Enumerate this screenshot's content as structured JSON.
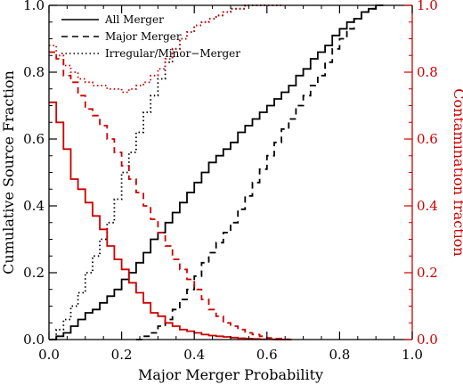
{
  "chart_data": {
    "type": "line",
    "xlabel": "Major Merger Probability",
    "ylabel": "Cumulative Source Fraction",
    "ylabel_right": "Contamination fraction",
    "xlim": [
      0.0,
      1.0
    ],
    "ylim": [
      0.0,
      1.0
    ],
    "ylim_right": [
      0.0,
      1.0
    ],
    "x_ticks": [
      "0.0",
      "0.2",
      "0.4",
      "0.6",
      "0.8",
      "1.0"
    ],
    "y_ticks": [
      "0.0",
      "0.2",
      "0.4",
      "0.6",
      "0.8",
      "1.0"
    ],
    "y_ticks_right": [
      "0.0",
      "0.2",
      "0.4",
      "0.6",
      "0.8",
      "1.0"
    ],
    "legend_position": "top-left",
    "grid": false,
    "bin_width": 0.02,
    "colors": {
      "cumulative": "#000000",
      "contamination": "#cc0000"
    },
    "series": [
      {
        "name": "All Merger",
        "axis": "left",
        "style": "solid",
        "color": "#000000",
        "x": [
          0.0,
          0.02,
          0.04,
          0.06,
          0.08,
          0.1,
          0.12,
          0.14,
          0.16,
          0.18,
          0.2,
          0.22,
          0.24,
          0.26,
          0.28,
          0.3,
          0.32,
          0.34,
          0.36,
          0.38,
          0.4,
          0.42,
          0.44,
          0.46,
          0.48,
          0.5,
          0.52,
          0.54,
          0.56,
          0.58,
          0.6,
          0.62,
          0.64,
          0.66,
          0.68,
          0.7,
          0.72,
          0.74,
          0.76,
          0.78,
          0.8,
          0.82,
          0.84,
          0.86,
          0.88,
          0.9
        ],
        "y": [
          0.0,
          0.01,
          0.02,
          0.04,
          0.06,
          0.08,
          0.09,
          0.11,
          0.13,
          0.15,
          0.18,
          0.2,
          0.23,
          0.26,
          0.3,
          0.32,
          0.35,
          0.38,
          0.41,
          0.44,
          0.47,
          0.5,
          0.53,
          0.55,
          0.57,
          0.59,
          0.62,
          0.64,
          0.66,
          0.68,
          0.7,
          0.72,
          0.74,
          0.76,
          0.79,
          0.81,
          0.84,
          0.86,
          0.88,
          0.91,
          0.93,
          0.95,
          0.96,
          0.98,
          0.99,
          1.0
        ]
      },
      {
        "name": "Major Merger",
        "axis": "left",
        "style": "dashed",
        "color": "#000000",
        "x": [
          0.24,
          0.26,
          0.28,
          0.3,
          0.32,
          0.34,
          0.36,
          0.38,
          0.4,
          0.42,
          0.44,
          0.46,
          0.48,
          0.5,
          0.52,
          0.54,
          0.56,
          0.58,
          0.6,
          0.62,
          0.64,
          0.66,
          0.68,
          0.7,
          0.72,
          0.74,
          0.76,
          0.78,
          0.8,
          0.82,
          0.84,
          0.86,
          0.88,
          0.9
        ],
        "y": [
          0.0,
          0.01,
          0.02,
          0.04,
          0.06,
          0.09,
          0.12,
          0.15,
          0.19,
          0.23,
          0.26,
          0.29,
          0.32,
          0.35,
          0.39,
          0.43,
          0.47,
          0.51,
          0.55,
          0.59,
          0.63,
          0.66,
          0.7,
          0.73,
          0.76,
          0.79,
          0.83,
          0.87,
          0.9,
          0.93,
          0.96,
          0.98,
          0.99,
          1.0
        ]
      },
      {
        "name": "Irregular/Minor−Merger",
        "axis": "left",
        "style": "dotted",
        "color": "#000000",
        "x": [
          0.0,
          0.02,
          0.04,
          0.06,
          0.08,
          0.1,
          0.12,
          0.14,
          0.16,
          0.18,
          0.2,
          0.22,
          0.24,
          0.26,
          0.28,
          0.3,
          0.32,
          0.34,
          0.36,
          0.38,
          0.4,
          0.42,
          0.44,
          0.46,
          0.48,
          0.5,
          0.52,
          0.54,
          0.56,
          0.58
        ],
        "y": [
          0.0,
          0.03,
          0.06,
          0.1,
          0.14,
          0.2,
          0.25,
          0.3,
          0.35,
          0.42,
          0.5,
          0.56,
          0.62,
          0.68,
          0.73,
          0.78,
          0.83,
          0.87,
          0.9,
          0.92,
          0.94,
          0.95,
          0.96,
          0.97,
          0.98,
          0.99,
          0.99,
          1.0,
          1.0,
          1.0
        ]
      },
      {
        "name": "All Merger",
        "axis": "right",
        "style": "solid",
        "color": "#cc0000",
        "x": [
          0.0,
          0.02,
          0.04,
          0.06,
          0.08,
          0.1,
          0.12,
          0.14,
          0.16,
          0.18,
          0.2,
          0.22,
          0.24,
          0.26,
          0.28,
          0.3,
          0.32,
          0.34,
          0.36,
          0.38,
          0.4,
          0.42,
          0.44,
          0.46,
          0.48,
          0.5,
          0.52,
          0.54,
          0.56,
          0.58,
          0.6,
          0.62,
          0.64
        ],
        "y": [
          0.71,
          0.65,
          0.57,
          0.48,
          0.45,
          0.41,
          0.37,
          0.33,
          0.28,
          0.24,
          0.21,
          0.17,
          0.14,
          0.11,
          0.08,
          0.07,
          0.05,
          0.04,
          0.03,
          0.025,
          0.02,
          0.015,
          0.012,
          0.01,
          0.008,
          0.006,
          0.004,
          0.003,
          0.002,
          0.001,
          0.001,
          0.0,
          0.0
        ]
      },
      {
        "name": "Major Merger",
        "axis": "right",
        "style": "dashed",
        "color": "#cc0000",
        "x": [
          0.0,
          0.02,
          0.04,
          0.06,
          0.08,
          0.1,
          0.12,
          0.14,
          0.16,
          0.18,
          0.2,
          0.22,
          0.24,
          0.26,
          0.28,
          0.3,
          0.32,
          0.34,
          0.36,
          0.38,
          0.4,
          0.42,
          0.44,
          0.46,
          0.48,
          0.5,
          0.52,
          0.54,
          0.56,
          0.58,
          0.6,
          0.62,
          0.64,
          0.66
        ],
        "y": [
          0.86,
          0.84,
          0.79,
          0.77,
          0.73,
          0.69,
          0.67,
          0.64,
          0.6,
          0.56,
          0.52,
          0.48,
          0.44,
          0.4,
          0.36,
          0.32,
          0.28,
          0.24,
          0.21,
          0.18,
          0.15,
          0.12,
          0.09,
          0.07,
          0.05,
          0.04,
          0.03,
          0.02,
          0.015,
          0.01,
          0.005,
          0.003,
          0.001,
          0.0
        ]
      },
      {
        "name": "Irregular/Minor−Merger",
        "axis": "right",
        "style": "dotted",
        "color": "#cc0000",
        "x": [
          0.0,
          0.02,
          0.04,
          0.06,
          0.08,
          0.1,
          0.12,
          0.14,
          0.16,
          0.18,
          0.2,
          0.22,
          0.24,
          0.26,
          0.28,
          0.3,
          0.32,
          0.34,
          0.36,
          0.38,
          0.4,
          0.42,
          0.44,
          0.46,
          0.48,
          0.5,
          0.52,
          0.54,
          0.56,
          0.58,
          0.6,
          0.62
        ],
        "y": [
          0.88,
          0.85,
          0.82,
          0.8,
          0.78,
          0.77,
          0.76,
          0.76,
          0.75,
          0.75,
          0.74,
          0.75,
          0.76,
          0.77,
          0.79,
          0.81,
          0.84,
          0.87,
          0.9,
          0.92,
          0.94,
          0.95,
          0.96,
          0.97,
          0.98,
          0.99,
          0.99,
          1.0,
          1.0,
          1.0,
          1.0,
          1.0
        ]
      }
    ]
  }
}
